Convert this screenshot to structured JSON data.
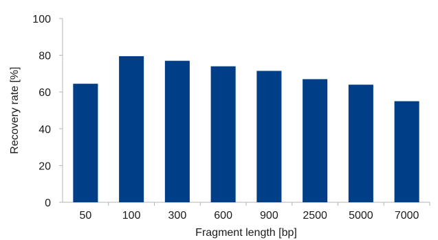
{
  "chart_data": {
    "type": "bar",
    "title": "",
    "xlabel": "Fragment length [bp]",
    "ylabel": "Recovery rate [%]",
    "categories": [
      "50",
      "100",
      "300",
      "600",
      "900",
      "2500",
      "5000",
      "7000"
    ],
    "values": [
      64.5,
      79.5,
      77,
      74,
      71.5,
      67,
      64,
      55
    ],
    "ylim": [
      0,
      100
    ],
    "yticks": [
      "0",
      "20",
      "40",
      "60",
      "80",
      "100"
    ],
    "grid": false,
    "legend": "none",
    "bar_color": "#003f87",
    "axis_color": "#b3b3b3"
  }
}
